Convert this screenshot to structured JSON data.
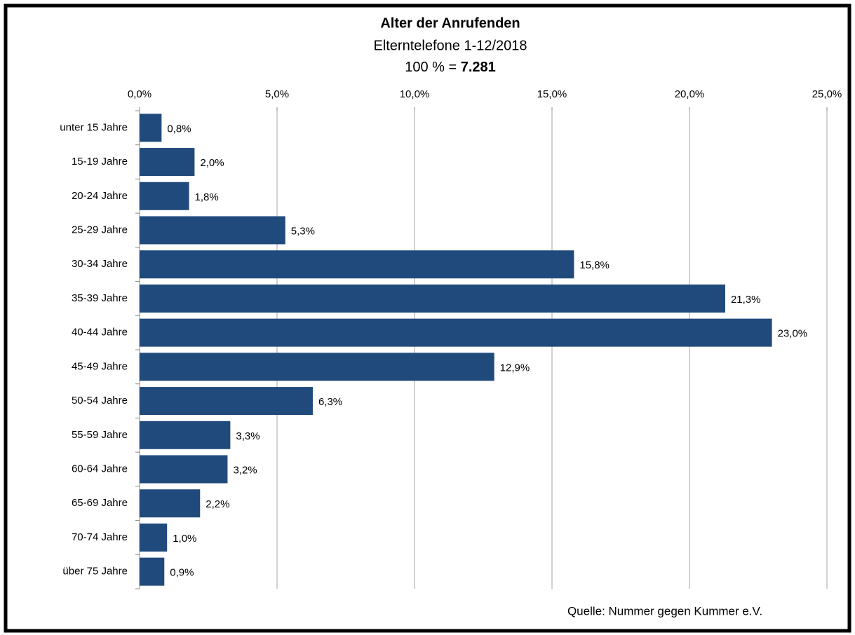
{
  "chart_data": {
    "type": "barh",
    "title": "Alter der Anrufenden",
    "subtitle": "Elterntelefone 1-12/2018",
    "total_label": "100 % =",
    "total": "7.281",
    "source": "Quelle: Nummer gegen Kummer e.V.",
    "categories": [
      "unter 15 Jahre",
      "15-19 Jahre",
      "20-24 Jahre",
      "25-29 Jahre",
      "30-34 Jahre",
      "35-39 Jahre",
      "40-44 Jahre",
      "45-49 Jahre",
      "50-54 Jahre",
      "55-59 Jahre",
      "60-64 Jahre",
      "65-69 Jahre",
      "70-74 Jahre",
      "über 75 Jahre"
    ],
    "values": [
      0.8,
      2.0,
      1.8,
      5.3,
      15.8,
      21.3,
      23.0,
      12.9,
      6.3,
      3.3,
      3.2,
      2.2,
      1.0,
      0.9
    ],
    "value_labels": [
      "0,8%",
      "2,0%",
      "1,8%",
      "5,3%",
      "15,8%",
      "21,3%",
      "23,0%",
      "12,9%",
      "6,3%",
      "3,3%",
      "3,2%",
      "2,2%",
      "1,0%",
      "0,9%"
    ],
    "color": "#214a7c",
    "xlim": [
      0,
      25
    ],
    "xticks": [
      {
        "value": 0,
        "label": "0,0%"
      },
      {
        "value": 5,
        "label": "5,0%"
      },
      {
        "value": 10,
        "label": "10,0%"
      },
      {
        "value": 15,
        "label": "15,0%"
      },
      {
        "value": 20,
        "label": "20,0%"
      },
      {
        "value": 25,
        "label": "25,0%"
      }
    ],
    "grid": true
  }
}
